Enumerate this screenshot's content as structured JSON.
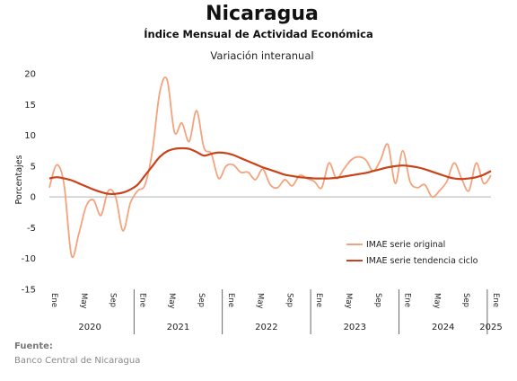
{
  "chart_data": {
    "type": "line",
    "title": "Nicaragua",
    "subtitle": "Índice Mensual de Actividad Económica",
    "subtitle2": "Variación interanual",
    "ylabel": "Porcentajes",
    "ylim": [
      -15,
      20
    ],
    "yticks": [
      -15,
      -10,
      -5,
      0,
      5,
      10,
      15,
      20
    ],
    "month_labels": [
      "Ene",
      "May",
      "Sep"
    ],
    "years": [
      "2020",
      "2021",
      "2022",
      "2023",
      "2024",
      "2025"
    ],
    "legend_position": "center-right",
    "series": [
      {
        "name": "IMAE serie original",
        "color": "#f4a37c",
        "values": [
          1.5,
          5.2,
          2.0,
          -9.5,
          -6.0,
          -1.5,
          -0.5,
          -3.0,
          1.0,
          0.0,
          -5.5,
          -1.0,
          1.0,
          2.0,
          7.5,
          17.0,
          19.0,
          10.5,
          12.0,
          9.0,
          14.0,
          8.0,
          7.0,
          3.0,
          5.0,
          5.2,
          4.0,
          4.0,
          2.8,
          4.5,
          2.0,
          1.5,
          2.8,
          1.8,
          3.5,
          3.0,
          2.5,
          1.5,
          5.5,
          3.0,
          4.5,
          6.0,
          6.5,
          6.0,
          4.2,
          6.0,
          8.5,
          2.2,
          7.5,
          2.5,
          1.5,
          2.0,
          0.0,
          1.0,
          2.5,
          5.5,
          3.0,
          1.0,
          5.5,
          2.2,
          3.5
        ]
      },
      {
        "name": "IMAE serie  tendencia ciclo",
        "color": "#c8431a",
        "values": [
          3.0,
          3.2,
          3.0,
          2.7,
          2.2,
          1.7,
          1.2,
          0.8,
          0.5,
          0.5,
          0.7,
          1.2,
          2.0,
          3.5,
          5.0,
          6.5,
          7.4,
          7.8,
          7.9,
          7.8,
          7.3,
          6.7,
          7.0,
          7.2,
          7.1,
          6.8,
          6.3,
          5.8,
          5.3,
          4.8,
          4.4,
          4.0,
          3.6,
          3.4,
          3.2,
          3.1,
          3.0,
          3.0,
          3.0,
          3.1,
          3.3,
          3.5,
          3.7,
          3.9,
          4.2,
          4.5,
          4.8,
          5.0,
          5.1,
          5.0,
          4.8,
          4.5,
          4.1,
          3.7,
          3.3,
          3.0,
          2.9,
          3.0,
          3.2,
          3.6,
          4.2
        ]
      }
    ]
  },
  "source": {
    "label": "Fuente:",
    "text": "Banco Central de Nicaragua"
  }
}
